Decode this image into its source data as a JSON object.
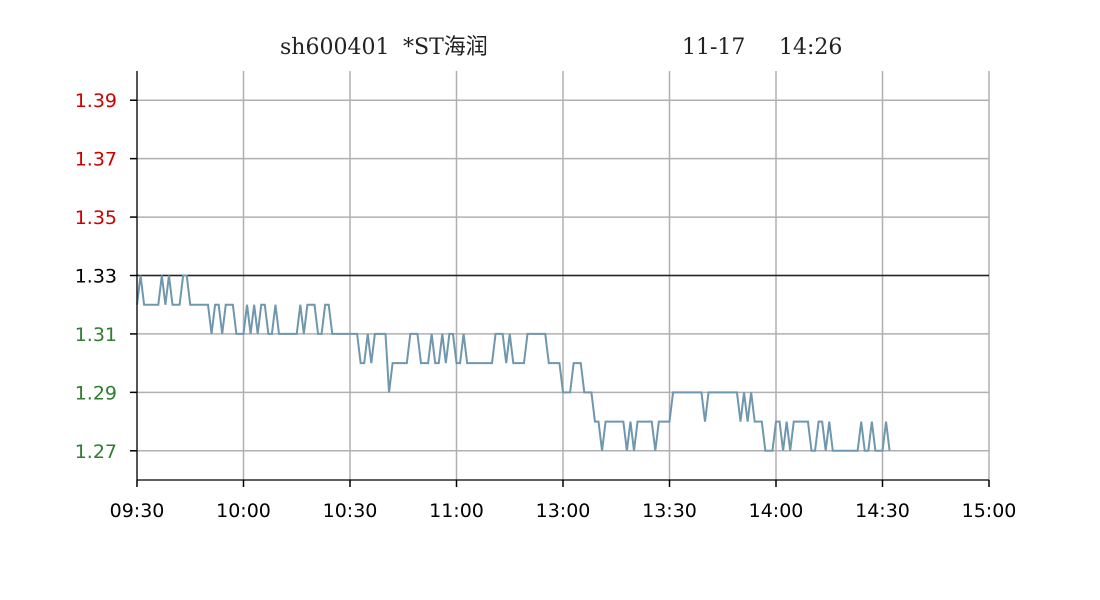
{
  "chart_data": {
    "type": "line",
    "title": {
      "symbol": "sh600401",
      "name": "*ST海润",
      "date": "11-17",
      "time": "14:26"
    },
    "x_tick_labels": [
      "09:30",
      "10:00",
      "10:30",
      "11:00",
      "13:00",
      "13:30",
      "14:00",
      "14:30",
      "15:00"
    ],
    "y_ticks": [
      {
        "value": 1.39,
        "label": "1.39",
        "color": "#cc0000"
      },
      {
        "value": 1.37,
        "label": "1.37",
        "color": "#cc0000"
      },
      {
        "value": 1.35,
        "label": "1.35",
        "color": "#cc0000"
      },
      {
        "value": 1.33,
        "label": "1.33",
        "color": "#000000"
      },
      {
        "value": 1.31,
        "label": "1.31",
        "color": "#2e7d32"
      },
      {
        "value": 1.29,
        "label": "1.29",
        "color": "#2e7d32"
      },
      {
        "value": 1.27,
        "label": "1.27",
        "color": "#2e7d32"
      }
    ],
    "ylim": [
      1.26,
      1.4
    ],
    "xlim": [
      0,
      240
    ],
    "reference_price": 1.33,
    "grid": true,
    "line_color": "#6f97ad",
    "reference_line_color": "#222222",
    "series": [
      {
        "values": [
          1.32,
          1.33,
          1.32,
          1.32,
          1.32,
          1.32,
          1.32,
          1.33,
          1.32,
          1.33,
          1.32,
          1.32,
          1.32,
          1.33,
          1.33,
          1.32,
          1.32,
          1.32,
          1.32,
          1.32,
          1.32,
          1.31,
          1.32,
          1.32,
          1.31,
          1.32,
          1.32,
          1.32,
          1.31,
          1.31,
          1.31,
          1.32,
          1.31,
          1.32,
          1.31,
          1.32,
          1.32,
          1.31,
          1.31,
          1.32,
          1.31,
          1.31,
          1.31,
          1.31,
          1.31,
          1.31,
          1.32,
          1.31,
          1.32,
          1.32,
          1.32,
          1.31,
          1.31,
          1.32,
          1.32,
          1.31,
          1.31,
          1.31,
          1.31,
          1.31,
          1.31,
          1.31,
          1.31,
          1.3,
          1.3,
          1.31,
          1.3,
          1.31,
          1.31,
          1.31,
          1.31,
          1.29,
          1.3,
          1.3,
          1.3,
          1.3,
          1.3,
          1.31,
          1.31,
          1.31,
          1.3,
          1.3,
          1.3,
          1.31,
          1.3,
          1.3,
          1.31,
          1.3,
          1.31,
          1.31,
          1.3,
          1.3,
          1.31,
          1.3,
          1.3,
          1.3,
          1.3,
          1.3,
          1.3,
          1.3,
          1.3,
          1.31,
          1.31,
          1.31,
          1.3,
          1.31,
          1.3,
          1.3,
          1.3,
          1.3,
          1.31,
          1.31,
          1.31,
          1.31,
          1.31,
          1.31,
          1.3,
          1.3,
          1.3,
          1.3,
          1.29,
          1.29,
          1.29,
          1.3,
          1.3,
          1.3,
          1.29,
          1.29,
          1.29,
          1.28,
          1.28,
          1.27,
          1.28,
          1.28,
          1.28,
          1.28,
          1.28,
          1.28,
          1.27,
          1.28,
          1.27,
          1.28,
          1.28,
          1.28,
          1.28,
          1.28,
          1.27,
          1.28,
          1.28,
          1.28,
          1.28,
          1.29,
          1.29,
          1.29,
          1.29,
          1.29,
          1.29,
          1.29,
          1.29,
          1.29,
          1.28,
          1.29,
          1.29,
          1.29,
          1.29,
          1.29,
          1.29,
          1.29,
          1.29,
          1.29,
          1.28,
          1.29,
          1.28,
          1.29,
          1.28,
          1.28,
          1.28,
          1.27,
          1.27,
          1.27,
          1.28,
          1.28,
          1.27,
          1.28,
          1.27,
          1.28,
          1.28,
          1.28,
          1.28,
          1.28,
          1.27,
          1.27,
          1.28,
          1.28,
          1.27,
          1.28,
          1.27,
          1.27,
          1.27,
          1.27,
          1.27,
          1.27,
          1.27,
          1.27,
          1.28,
          1.27,
          1.27,
          1.28,
          1.27,
          1.27,
          1.27,
          1.28,
          1.27
        ]
      }
    ]
  }
}
